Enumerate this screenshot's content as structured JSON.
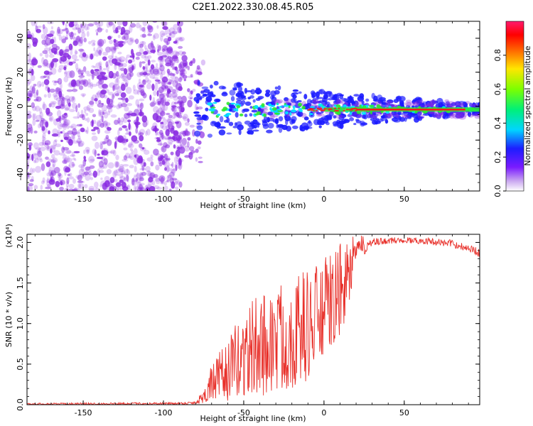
{
  "title": "C2E1.2022.330.08.45.R05",
  "chart_data": [
    {
      "type": "heatmap",
      "xlabel": "Height of straight line (km)",
      "ylabel": "Frequency (Hz)",
      "xlim": [
        -185,
        97
      ],
      "ylim": [
        -50,
        50
      ],
      "x_ticks": [
        -150,
        -100,
        -50,
        0,
        50
      ],
      "x_tick_labels": [
        "-150",
        "-100",
        "-50",
        "0",
        "50"
      ],
      "y_ticks": [
        -40,
        -20,
        0,
        20,
        40
      ],
      "y_tick_labels": [
        "-40",
        "-20",
        "0",
        "20",
        "40"
      ],
      "colorbar": {
        "label": "Normalized spectral amplitude",
        "range": [
          0.0,
          1.0
        ],
        "ticks": [
          0.0,
          0.2,
          0.4,
          0.6,
          0.8
        ],
        "tick_labels": [
          "0.0",
          "0.2",
          "0.4",
          "0.6",
          "0.8"
        ]
      },
      "signal_band": {
        "center_frequency_hz": -2,
        "noise_region_x": [
          -185,
          -80
        ],
        "signal_onset_x": -80,
        "strong_signal_x": [
          20,
          97
        ]
      }
    },
    {
      "type": "line",
      "xlabel": "Height of straight line (km)",
      "ylabel": "SNR (10 * v/v)",
      "y_multiplier_label": "(x10⁴)",
      "xlim": [
        -185,
        97
      ],
      "ylim": [
        0.0,
        2.1
      ],
      "x_ticks": [
        -150,
        -100,
        -50,
        0,
        50
      ],
      "x_tick_labels": [
        "-150",
        "-100",
        "-50",
        "0",
        "50"
      ],
      "y_ticks": [
        0.0,
        0.5,
        1.0,
        1.5,
        2.0
      ],
      "y_tick_labels": [
        "0.0",
        "0.5",
        "1.0",
        "1.5",
        "2.0"
      ],
      "series": [
        {
          "color": "#e8302a",
          "envelope": {
            "x": [
              -185,
              -90,
              -80,
              -75,
              -70,
              -60,
              -50,
              -40,
              -30,
              -20,
              -10,
              0,
              10,
              20,
              30,
              40,
              50,
              60,
              70,
              80,
              90,
              97
            ],
            "low": [
              0.0,
              0.0,
              0.0,
              0.02,
              0.05,
              0.05,
              0.1,
              0.1,
              0.15,
              0.2,
              0.3,
              0.6,
              0.8,
              1.6,
              1.9,
              1.95,
              1.96,
              1.95,
              1.93,
              1.9,
              1.85,
              1.78
            ],
            "high": [
              0.02,
              0.03,
              0.05,
              0.2,
              0.5,
              0.8,
              1.2,
              1.4,
              1.5,
              1.6,
              1.7,
              1.8,
              2.0,
              2.1,
              2.05,
              2.06,
              2.07,
              2.06,
              2.05,
              2.03,
              1.98,
              1.92
            ]
          }
        }
      ]
    }
  ],
  "colors": {
    "noise_purple": "#8a2be2",
    "deep_blue": "#1a1aff",
    "cyan": "#00e5ff",
    "green": "#2ee82e",
    "red": "#ff1a1a",
    "line_red": "#e8302a"
  }
}
